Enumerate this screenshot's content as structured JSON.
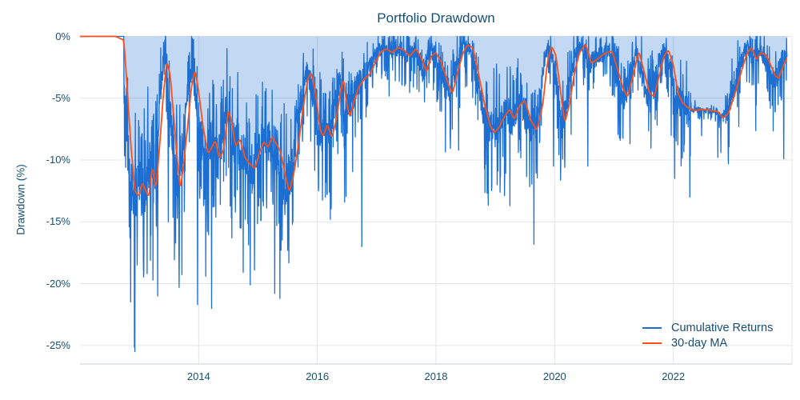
{
  "page": {
    "background": "#ffffff"
  },
  "chart_data": {
    "type": "line",
    "title": "Portfolio Drawdown",
    "ylabel": "Drawdown (%)",
    "xlabel": "",
    "grid": true,
    "legend_position": "bottom-right-inside",
    "x_range": [
      2012.0,
      2024.0
    ],
    "y_range": [
      -26.5,
      0
    ],
    "x_ticks": [
      {
        "value": 2014,
        "label": "2014"
      },
      {
        "value": 2016,
        "label": "2016"
      },
      {
        "value": 2018,
        "label": "2018"
      },
      {
        "value": 2020,
        "label": "2020"
      },
      {
        "value": 2022,
        "label": "2022"
      }
    ],
    "y_ticks": [
      {
        "value": 0,
        "label": "0%"
      },
      {
        "value": -5,
        "label": "-5%"
      },
      {
        "value": -10,
        "label": "-10%"
      },
      {
        "value": -15,
        "label": "-15%"
      },
      {
        "value": -20,
        "label": "-20%"
      },
      {
        "value": -25,
        "label": "-25%"
      }
    ],
    "colors": {
      "text": "#164f73",
      "grid": "#e1e4e7",
      "axis_line": "#d2d6d9"
    },
    "series": [
      {
        "name": "Cumulative Returns",
        "color": "#1c6fd1",
        "fill": "rgba(28,111,209,0.27)",
        "style": "noisy-daily-drawdown",
        "flat_zero_until": 2012.74,
        "end": 2023.92,
        "noise": {
          "seed": 11,
          "points_per_year": 252,
          "base_sigma": 0.45,
          "sigma_scale": 0.12,
          "lead": 0.055,
          "calm_periods": [
            [
              2022.3,
              2022.88,
              0.18
            ]
          ]
        },
        "spike_events": [
          [
            2012.84,
            -16.3
          ],
          [
            2012.92,
            -16.6
          ],
          [
            2013.31,
            -21.0
          ],
          [
            2013.49,
            -15.0
          ],
          [
            2013.67,
            -20.3
          ],
          [
            2013.98,
            -21.7
          ],
          [
            2014.12,
            -19.4
          ],
          [
            2014.22,
            -22.0
          ],
          [
            2014.56,
            -16.3
          ],
          [
            2014.87,
            -20.1
          ],
          [
            2014.94,
            -18.9
          ],
          [
            2015.28,
            -20.8
          ],
          [
            2015.37,
            -21.2
          ],
          [
            2015.5,
            -17.3
          ],
          [
            2015.58,
            -15.2
          ],
          [
            2016.22,
            -14.8
          ],
          [
            2016.46,
            -13.4
          ],
          [
            2016.75,
            -17.0
          ],
          [
            2018.38,
            -9.2
          ],
          [
            2019.03,
            -12.0
          ],
          [
            2019.08,
            -12.6
          ],
          [
            2019.16,
            -11.4
          ],
          [
            2019.98,
            -10.5
          ],
          [
            2020.17,
            -10.6
          ],
          [
            2020.56,
            -10.5
          ],
          [
            2021.27,
            -8.7
          ],
          [
            2022.8,
            -9.4
          ],
          [
            2022.93,
            -10.3
          ],
          [
            2023.86,
            -9.9
          ]
        ]
      },
      {
        "name": "30-day MA",
        "color": "#ff4e16",
        "style": "smooth-line",
        "anchors": [
          [
            2012.0,
            0
          ],
          [
            2012.6,
            0
          ],
          [
            2012.74,
            -0.3
          ],
          [
            2012.8,
            -4.5
          ],
          [
            2012.86,
            -9.0
          ],
          [
            2012.93,
            -12.6
          ],
          [
            2013.0,
            -12.9
          ],
          [
            2013.05,
            -11.8
          ],
          [
            2013.1,
            -12.4
          ],
          [
            2013.16,
            -13.0
          ],
          [
            2013.22,
            -10.5
          ],
          [
            2013.28,
            -12.4
          ],
          [
            2013.34,
            -9.0
          ],
          [
            2013.4,
            -5.0
          ],
          [
            2013.46,
            -2.0
          ],
          [
            2013.52,
            -3.1
          ],
          [
            2013.58,
            -6.5
          ],
          [
            2013.64,
            -10.0
          ],
          [
            2013.69,
            -12.4
          ],
          [
            2013.75,
            -10.2
          ],
          [
            2013.82,
            -7.0
          ],
          [
            2013.88,
            -4.0
          ],
          [
            2013.94,
            -2.7
          ],
          [
            2014.0,
            -4.5
          ],
          [
            2014.08,
            -7.5
          ],
          [
            2014.16,
            -9.5
          ],
          [
            2014.22,
            -9.0
          ],
          [
            2014.28,
            -8.4
          ],
          [
            2014.35,
            -9.9
          ],
          [
            2014.42,
            -9.2
          ],
          [
            2014.5,
            -5.9
          ],
          [
            2014.56,
            -7.0
          ],
          [
            2014.62,
            -8.9
          ],
          [
            2014.7,
            -8.3
          ],
          [
            2014.78,
            -9.8
          ],
          [
            2014.86,
            -10.3
          ],
          [
            2014.95,
            -10.7
          ],
          [
            2015.03,
            -9.3
          ],
          [
            2015.1,
            -8.5
          ],
          [
            2015.17,
            -9.0
          ],
          [
            2015.24,
            -8.1
          ],
          [
            2015.31,
            -8.7
          ],
          [
            2015.38,
            -9.3
          ],
          [
            2015.45,
            -11.0
          ],
          [
            2015.53,
            -12.6
          ],
          [
            2015.6,
            -11.2
          ],
          [
            2015.68,
            -8.8
          ],
          [
            2015.76,
            -5.8
          ],
          [
            2015.84,
            -3.4
          ],
          [
            2015.9,
            -2.9
          ],
          [
            2015.97,
            -4.6
          ],
          [
            2016.05,
            -7.6
          ],
          [
            2016.1,
            -8.1
          ],
          [
            2016.17,
            -7.1
          ],
          [
            2016.24,
            -8.2
          ],
          [
            2016.31,
            -7.0
          ],
          [
            2016.38,
            -4.8
          ],
          [
            2016.44,
            -3.4
          ],
          [
            2016.5,
            -5.6
          ],
          [
            2016.55,
            -6.5
          ],
          [
            2016.62,
            -5.2
          ],
          [
            2016.7,
            -4.1
          ],
          [
            2016.78,
            -3.5
          ],
          [
            2016.88,
            -3.1
          ],
          [
            2016.96,
            -2.3
          ],
          [
            2017.06,
            -1.3
          ],
          [
            2017.16,
            -1.0
          ],
          [
            2017.26,
            -1.3
          ],
          [
            2017.36,
            -0.9
          ],
          [
            2017.46,
            -1.1
          ],
          [
            2017.56,
            -1.6
          ],
          [
            2017.66,
            -1.0
          ],
          [
            2017.76,
            -1.8
          ],
          [
            2017.84,
            -2.9
          ],
          [
            2017.92,
            -1.6
          ],
          [
            2018.0,
            -1.3
          ],
          [
            2018.1,
            -2.2
          ],
          [
            2018.2,
            -3.8
          ],
          [
            2018.28,
            -4.6
          ],
          [
            2018.36,
            -3.0
          ],
          [
            2018.45,
            -1.4
          ],
          [
            2018.53,
            -0.7
          ],
          [
            2018.62,
            -0.9
          ],
          [
            2018.72,
            -3.1
          ],
          [
            2018.82,
            -5.5
          ],
          [
            2018.92,
            -7.3
          ],
          [
            2018.98,
            -7.8
          ],
          [
            2019.06,
            -7.4
          ],
          [
            2019.14,
            -6.6
          ],
          [
            2019.24,
            -5.9
          ],
          [
            2019.32,
            -6.7
          ],
          [
            2019.42,
            -5.5
          ],
          [
            2019.5,
            -5.2
          ],
          [
            2019.6,
            -6.8
          ],
          [
            2019.7,
            -7.6
          ],
          [
            2019.8,
            -5.5
          ],
          [
            2019.88,
            -2.0
          ],
          [
            2019.95,
            -0.8
          ],
          [
            2020.02,
            -1.5
          ],
          [
            2020.1,
            -4.5
          ],
          [
            2020.17,
            -7.0
          ],
          [
            2020.25,
            -5.5
          ],
          [
            2020.33,
            -3.0
          ],
          [
            2020.42,
            -1.3
          ],
          [
            2020.52,
            -0.6
          ],
          [
            2020.62,
            -2.2
          ],
          [
            2020.7,
            -1.9
          ],
          [
            2020.78,
            -1.6
          ],
          [
            2020.88,
            -1.3
          ],
          [
            2020.97,
            -1.2
          ],
          [
            2021.07,
            -2.8
          ],
          [
            2021.16,
            -4.3
          ],
          [
            2021.23,
            -4.9
          ],
          [
            2021.32,
            -3.2
          ],
          [
            2021.42,
            -1.2
          ],
          [
            2021.51,
            -2.9
          ],
          [
            2021.6,
            -4.6
          ],
          [
            2021.68,
            -4.9
          ],
          [
            2021.76,
            -3.2
          ],
          [
            2021.85,
            -1.5
          ],
          [
            2021.92,
            -1.1
          ],
          [
            2022.0,
            -2.3
          ],
          [
            2022.08,
            -4.6
          ],
          [
            2022.16,
            -5.4
          ],
          [
            2022.26,
            -5.8
          ],
          [
            2022.36,
            -6.0
          ],
          [
            2022.5,
            -5.9
          ],
          [
            2022.64,
            -6.0
          ],
          [
            2022.76,
            -6.1
          ],
          [
            2022.84,
            -6.6
          ],
          [
            2022.92,
            -6.3
          ],
          [
            2023.0,
            -5.2
          ],
          [
            2023.08,
            -4.0
          ],
          [
            2023.16,
            -2.6
          ],
          [
            2023.25,
            -1.3
          ],
          [
            2023.32,
            -0.9
          ],
          [
            2023.4,
            -1.9
          ],
          [
            2023.48,
            -1.3
          ],
          [
            2023.56,
            -1.5
          ],
          [
            2023.64,
            -2.3
          ],
          [
            2023.72,
            -3.2
          ],
          [
            2023.78,
            -3.4
          ],
          [
            2023.85,
            -2.4
          ],
          [
            2023.92,
            -1.7
          ]
        ]
      }
    ]
  }
}
